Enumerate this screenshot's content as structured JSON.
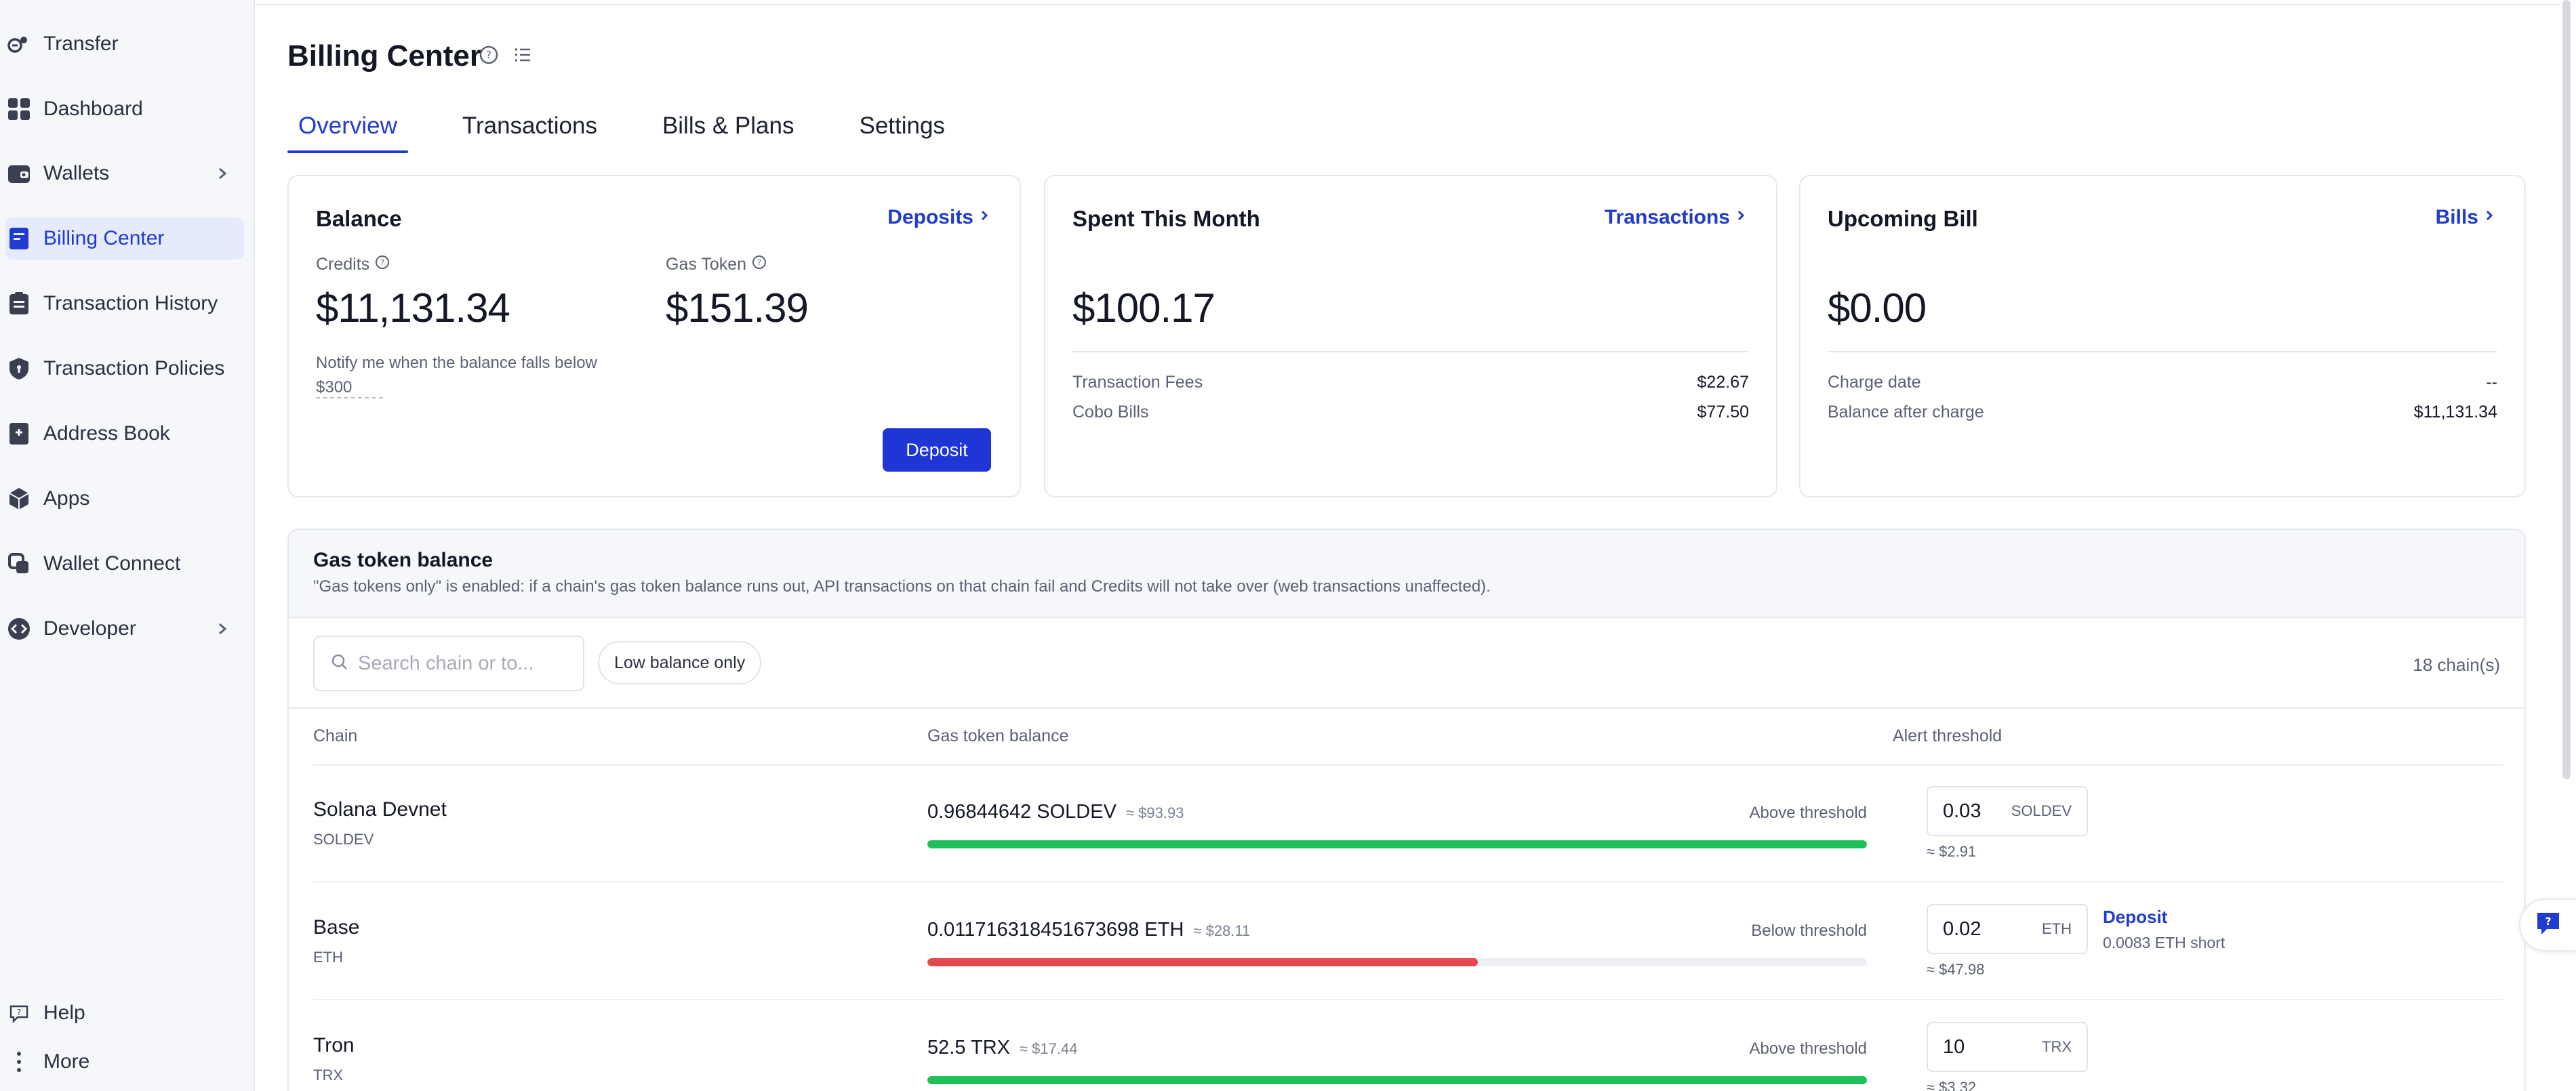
{
  "sidebar": {
    "items": [
      {
        "label": "Transfer",
        "icon": "transfer-icon"
      },
      {
        "label": "Dashboard",
        "icon": "dashboard-icon"
      },
      {
        "label": "Wallets",
        "icon": "wallet-icon"
      },
      {
        "label": "Billing Center",
        "icon": "billing-icon"
      },
      {
        "label": "Transaction History",
        "icon": "history-icon"
      },
      {
        "label": "Transaction Policies",
        "icon": "shield-icon"
      },
      {
        "label": "Address Book",
        "icon": "address-book-icon"
      },
      {
        "label": "Apps",
        "icon": "apps-icon"
      },
      {
        "label": "Wallet Connect",
        "icon": "wallet-connect-icon"
      },
      {
        "label": "Developer",
        "icon": "code-icon"
      }
    ],
    "footer": {
      "help": "Help",
      "more": "More"
    }
  },
  "header": {
    "title": "Billing Center"
  },
  "tabs": [
    "Overview",
    "Transactions",
    "Bills & Plans",
    "Settings"
  ],
  "balance_card": {
    "title": "Balance",
    "link": "Deposits",
    "credits_label": "Credits",
    "credits_value": "$11,131.34",
    "gas_label": "Gas Token",
    "gas_value": "$151.39",
    "notify_text": "Notify me when the balance falls below",
    "notify_value": "$300",
    "deposit_button": "Deposit"
  },
  "spent_card": {
    "title": "Spent This Month",
    "link": "Transactions",
    "value": "$100.17",
    "rows": [
      {
        "label": "Transaction Fees",
        "value": "$22.67"
      },
      {
        "label": "Cobo Bills",
        "value": "$77.50"
      }
    ]
  },
  "bill_card": {
    "title": "Upcoming Bill",
    "link": "Bills",
    "value": "$0.00",
    "rows": [
      {
        "label": "Charge date",
        "value": "--"
      },
      {
        "label": "Balance after charge",
        "value": "$11,131.34"
      }
    ]
  },
  "gas_panel": {
    "title": "Gas token balance",
    "description": "\"Gas tokens only\" is enabled: if a chain's gas token balance runs out, API transactions on that chain fail and Credits will not take over (web transactions unaffected).",
    "search_placeholder": "Search chain or to...",
    "filter_chip": "Low balance only",
    "chain_count": "18 chain(s)",
    "columns": [
      "Chain",
      "Gas token balance",
      "Alert threshold"
    ],
    "rows": [
      {
        "chain": "Solana Devnet",
        "symbol": "SOLDEV",
        "balance": "0.96844642 SOLDEV",
        "balance_usd": "≈ $93.93",
        "status": "Above threshold",
        "level": 1.0,
        "bar_color": "#1fbf5a",
        "threshold": "0.03",
        "threshold_unit": "SOLDEV",
        "threshold_usd": "≈ $2.91"
      },
      {
        "chain": "Base",
        "symbol": "ETH",
        "balance": "0.011716318451673698 ETH",
        "balance_usd": "≈ $28.11",
        "status": "Below threshold",
        "level": 0.586,
        "bar_color": "#e5484d",
        "threshold": "0.02",
        "threshold_unit": "ETH",
        "threshold_usd": "≈ $47.98",
        "deposit": "Deposit",
        "short": "0.0083 ETH short"
      },
      {
        "chain": "Tron",
        "symbol": "TRX",
        "balance": "52.5 TRX",
        "balance_usd": "≈ $17.44",
        "status": "Above threshold",
        "level": 1.0,
        "bar_color": "#1fbf5a",
        "threshold": "10",
        "threshold_unit": "TRX",
        "threshold_usd": "≈ $3.32"
      }
    ]
  },
  "colors": {
    "accent": "#1f3bd0",
    "success": "#1fbf5a",
    "danger": "#e5484d"
  }
}
